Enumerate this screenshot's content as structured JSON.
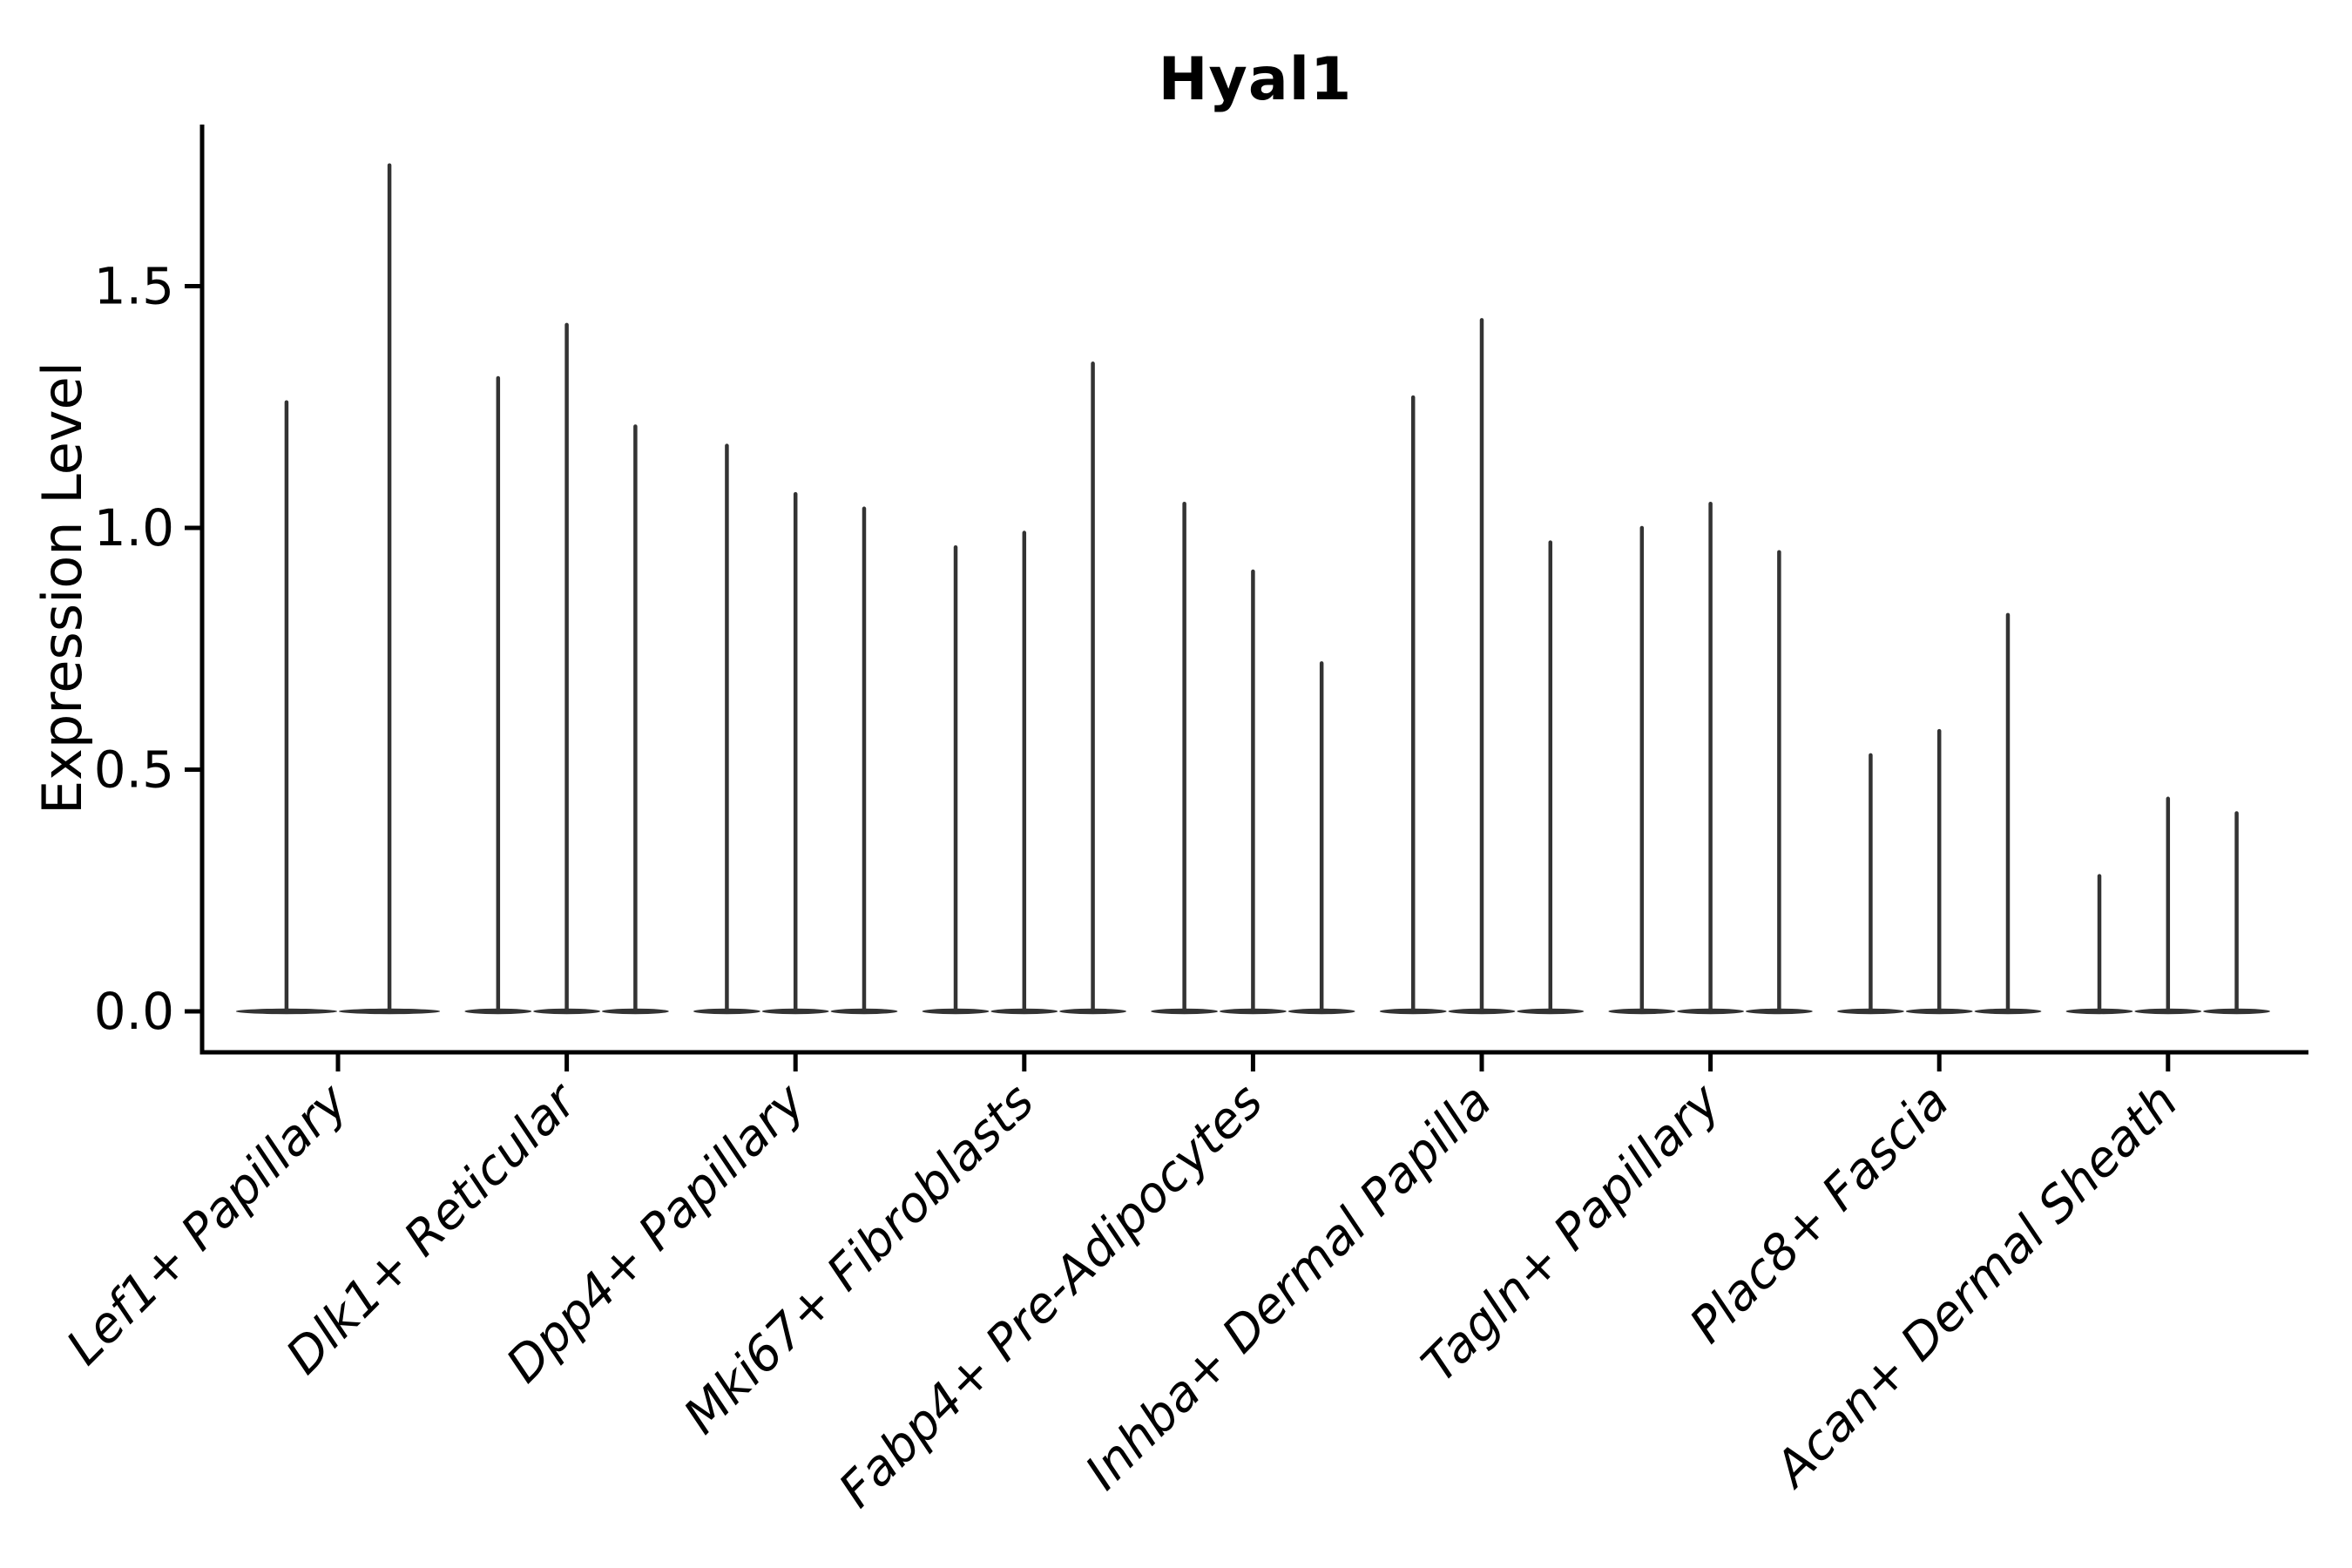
{
  "figure": {
    "background": "#ffffff"
  },
  "chart_data": {
    "type": "violin",
    "title": "Hyal1",
    "ylabel": "Expression Level",
    "xlabel": "",
    "y_ticks": [
      {
        "label": "0.0",
        "value": 0.0
      },
      {
        "label": "0.5",
        "value": 0.5
      },
      {
        "label": "1.0",
        "value": 1.0
      },
      {
        "label": "1.5",
        "value": 1.5
      }
    ],
    "ylim": [
      -0.08,
      1.84
    ],
    "grid": false,
    "legend": null,
    "style": {
      "violin_color": "#333333",
      "axis_color": "#000000",
      "text_color": "#000000",
      "x_label_rotation_deg": 45,
      "x_label_style": "italic",
      "violin_group_width_fraction": 0.9
    },
    "groups": [
      {
        "label": "Lef1+ Papillary",
        "violin_maxima": [
          1.26,
          1.75
        ]
      },
      {
        "label": "Dlk1+ Reticular",
        "violin_maxima": [
          1.31,
          1.42,
          1.21
        ]
      },
      {
        "label": "Dpp4+ Papillary",
        "violin_maxima": [
          1.17,
          1.07,
          1.04
        ]
      },
      {
        "label": "Mki67+ Fibroblasts",
        "violin_maxima": [
          0.96,
          0.99,
          1.34
        ]
      },
      {
        "label": "Fabp4+ Pre-Adipocytes",
        "violin_maxima": [
          1.05,
          0.91,
          0.72
        ]
      },
      {
        "label": "Inhba+ Dermal Papilla",
        "violin_maxima": [
          1.27,
          1.43,
          0.97
        ]
      },
      {
        "label": "Tagln+ Papillary",
        "violin_maxima": [
          1.0,
          1.05,
          0.95
        ]
      },
      {
        "label": "Plac8+ Fascia",
        "violin_maxima": [
          0.53,
          0.58,
          0.82
        ]
      },
      {
        "label": "Acan+ Dermal Sheath",
        "violin_maxima": [
          0.28,
          0.44,
          0.41
        ]
      }
    ]
  }
}
